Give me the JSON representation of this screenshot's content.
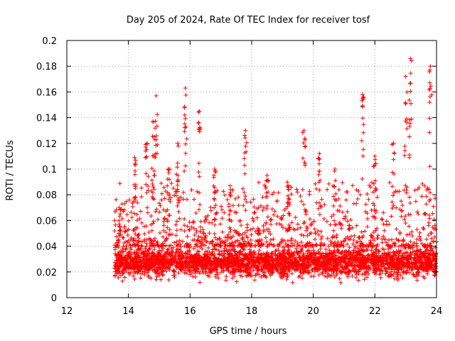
{
  "chart_data": {
    "type": "scatter",
    "title": "Day 205 of 2024, Rate Of TEC Index for receiver tosf",
    "xlabel": "GPS time / hours",
    "ylabel": "ROTI / TECUs",
    "xlim": [
      12,
      24
    ],
    "ylim": [
      0,
      0.2
    ],
    "xticks": [
      12,
      14,
      16,
      18,
      20,
      22,
      24
    ],
    "yticks": [
      0,
      0.02,
      0.04,
      0.06,
      0.08,
      0.1,
      0.12,
      0.14,
      0.16,
      0.18,
      0.2
    ],
    "xtick_labels": [
      "12",
      "14",
      "16",
      "18",
      "20",
      "22",
      "24"
    ],
    "ytick_labels": [
      "0",
      "0.02",
      "0.04",
      "0.06",
      "0.08",
      "0.1",
      "0.12",
      "0.14",
      "0.16",
      "0.18",
      "0.2"
    ],
    "grid": true,
    "marker": "+",
    "color": "#ff0000",
    "series": [
      {
        "name": "ROTI",
        "x_start": 13.55,
        "x_end": 24.0,
        "baseline_range": [
          0.01,
          0.045
        ],
        "spikes": [
          {
            "x": 13.7,
            "y": 0.07
          },
          {
            "x": 14.2,
            "y": 0.109
          },
          {
            "x": 14.6,
            "y": 0.12
          },
          {
            "x": 14.8,
            "y": 0.137
          },
          {
            "x": 14.9,
            "y": 0.157
          },
          {
            "x": 15.3,
            "y": 0.1
          },
          {
            "x": 15.6,
            "y": 0.12
          },
          {
            "x": 15.85,
            "y": 0.163
          },
          {
            "x": 16.3,
            "y": 0.145
          },
          {
            "x": 16.8,
            "y": 0.1
          },
          {
            "x": 17.3,
            "y": 0.087
          },
          {
            "x": 17.8,
            "y": 0.13
          },
          {
            "x": 18.5,
            "y": 0.095
          },
          {
            "x": 19.2,
            "y": 0.087
          },
          {
            "x": 19.7,
            "y": 0.13
          },
          {
            "x": 20.2,
            "y": 0.112
          },
          {
            "x": 20.7,
            "y": 0.1
          },
          {
            "x": 21.6,
            "y": 0.158
          },
          {
            "x": 22.0,
            "y": 0.11
          },
          {
            "x": 22.6,
            "y": 0.12
          },
          {
            "x": 23.0,
            "y": 0.172
          },
          {
            "x": 23.15,
            "y": 0.186
          },
          {
            "x": 23.8,
            "y": 0.18
          }
        ]
      }
    ]
  }
}
